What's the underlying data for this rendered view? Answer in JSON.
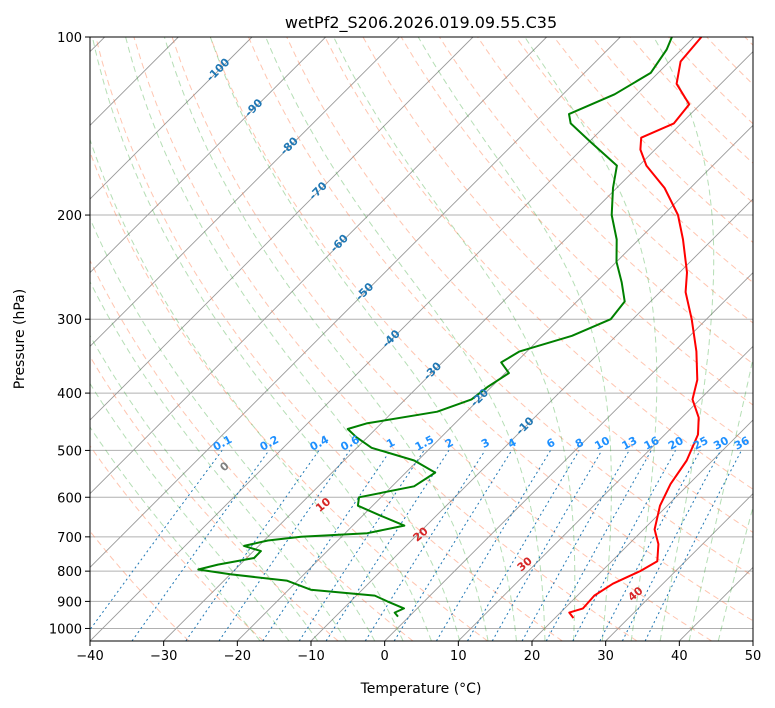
{
  "chart_data": {
    "type": "skew-t",
    "title": "wetPf2_S206.2026.019.09.55.C35",
    "xlabel": "Temperature (°C)",
    "ylabel": "Pressure (hPa)",
    "xlim": [
      -40,
      50
    ],
    "ylim": [
      1050,
      100
    ],
    "x_ticks": [
      -40,
      -30,
      -20,
      -10,
      0,
      10,
      20,
      30,
      40,
      50
    ],
    "y_ticks": [
      100,
      200,
      300,
      400,
      500,
      600,
      700,
      800,
      900,
      1000
    ],
    "x_tick_labels": [
      "−40",
      "−30",
      "−20",
      "−10",
      "0",
      "10",
      "20",
      "30",
      "40",
      "50"
    ],
    "y_tick_labels": [
      "100",
      "200",
      "300",
      "400",
      "500",
      "600",
      "700",
      "800",
      "900",
      "1000"
    ],
    "grid": true,
    "colors": {
      "temperature": "#ff0000",
      "dewpoint": "#008000",
      "isotherm": "#999999",
      "dry_adiabat": "#ff7f50",
      "moist_adiabat": "#2ca02c",
      "mixing_ratio": "#1f77b4",
      "dry_adiabat_label": "#d62728",
      "isotherm_label": "#1f77b4",
      "mixing_ratio_label": "#1e90ff",
      "zero_label": "#808080",
      "lcl_curve": "#d2b48c"
    },
    "series": [
      {
        "name": "temperature",
        "color": "#ff0000",
        "points": [
          {
            "p": 960,
            "t": 22.5
          },
          {
            "p": 940,
            "t": 21.2
          },
          {
            "p": 925,
            "t": 22.5
          },
          {
            "p": 880,
            "t": 22.3
          },
          {
            "p": 840,
            "t": 23.2
          },
          {
            "p": 800,
            "t": 25.2
          },
          {
            "p": 770,
            "t": 26.2
          },
          {
            "p": 720,
            "t": 24.0
          },
          {
            "p": 680,
            "t": 21.5
          },
          {
            "p": 620,
            "t": 19.0
          },
          {
            "p": 570,
            "t": 17.5
          },
          {
            "p": 520,
            "t": 16.5
          },
          {
            "p": 470,
            "t": 14.5
          },
          {
            "p": 440,
            "t": 12.3
          },
          {
            "p": 410,
            "t": 9.0
          },
          {
            "p": 380,
            "t": 7.0
          },
          {
            "p": 340,
            "t": 3.0
          },
          {
            "p": 300,
            "t": -2.0
          },
          {
            "p": 270,
            "t": -6.5
          },
          {
            "p": 250,
            "t": -9.0
          },
          {
            "p": 220,
            "t": -14.0
          },
          {
            "p": 200,
            "t": -18.0
          },
          {
            "p": 180,
            "t": -23.5
          },
          {
            "p": 165,
            "t": -29.0
          },
          {
            "p": 155,
            "t": -32.0
          },
          {
            "p": 148,
            "t": -33.5
          },
          {
            "p": 140,
            "t": -31.0
          },
          {
            "p": 130,
            "t": -31.5
          },
          {
            "p": 120,
            "t": -36.0
          },
          {
            "p": 110,
            "t": -38.5
          },
          {
            "p": 100,
            "t": -39.0
          }
        ]
      },
      {
        "name": "dewpoint",
        "color": "#008000",
        "points": [
          {
            "p": 955,
            "t": -1.5
          },
          {
            "p": 940,
            "t": -2.5
          },
          {
            "p": 925,
            "t": -1.8
          },
          {
            "p": 900,
            "t": -5.0
          },
          {
            "p": 880,
            "t": -7.5
          },
          {
            "p": 860,
            "t": -17.0
          },
          {
            "p": 830,
            "t": -21.5
          },
          {
            "p": 810,
            "t": -30.0
          },
          {
            "p": 795,
            "t": -35.0
          },
          {
            "p": 780,
            "t": -33.0
          },
          {
            "p": 760,
            "t": -29.0
          },
          {
            "p": 740,
            "t": -29.0
          },
          {
            "p": 725,
            "t": -32.0
          },
          {
            "p": 710,
            "t": -29.5
          },
          {
            "p": 700,
            "t": -25.5
          },
          {
            "p": 690,
            "t": -17.0
          },
          {
            "p": 670,
            "t": -13.0
          },
          {
            "p": 645,
            "t": -17.5
          },
          {
            "p": 620,
            "t": -22.0
          },
          {
            "p": 600,
            "t": -23.0
          },
          {
            "p": 575,
            "t": -17.0
          },
          {
            "p": 545,
            "t": -16.0
          },
          {
            "p": 520,
            "t": -20.5
          },
          {
            "p": 495,
            "t": -28.0
          },
          {
            "p": 475,
            "t": -31.5
          },
          {
            "p": 460,
            "t": -33.8
          },
          {
            "p": 450,
            "t": -32.0
          },
          {
            "p": 430,
            "t": -24.0
          },
          {
            "p": 410,
            "t": -21.0
          },
          {
            "p": 390,
            "t": -20.5
          },
          {
            "p": 370,
            "t": -19.5
          },
          {
            "p": 355,
            "t": -22.0
          },
          {
            "p": 340,
            "t": -21.0
          },
          {
            "p": 320,
            "t": -16.0
          },
          {
            "p": 300,
            "t": -13.0
          },
          {
            "p": 280,
            "t": -13.5
          },
          {
            "p": 260,
            "t": -16.5
          },
          {
            "p": 240,
            "t": -20.0
          },
          {
            "p": 220,
            "t": -23.0
          },
          {
            "p": 200,
            "t": -27.0
          },
          {
            "p": 180,
            "t": -30.5
          },
          {
            "p": 165,
            "t": -33.0
          },
          {
            "p": 150,
            "t": -40.0
          },
          {
            "p": 140,
            "t": -45.0
          },
          {
            "p": 135,
            "t": -46.5
          },
          {
            "p": 125,
            "t": -43.0
          },
          {
            "p": 115,
            "t": -41.0
          },
          {
            "p": 105,
            "t": -42.0
          },
          {
            "p": 100,
            "t": -43.0
          }
        ]
      }
    ],
    "isotherm_labels": [
      {
        "text": "-100",
        "value": -100
      },
      {
        "text": "-90",
        "value": -90
      },
      {
        "text": "-80",
        "value": -80
      },
      {
        "text": "-70",
        "value": -70
      },
      {
        "text": "-60",
        "value": -60
      },
      {
        "text": "-50",
        "value": -50
      },
      {
        "text": "-40",
        "value": -40
      },
      {
        "text": "-30",
        "value": -30
      },
      {
        "text": "-20",
        "value": -20
      },
      {
        "text": "-10",
        "value": -10
      }
    ],
    "mixing_ratio_labels": [
      {
        "text": "0.1",
        "value": 0.1
      },
      {
        "text": "0.2",
        "value": 0.2
      },
      {
        "text": "0.4",
        "value": 0.4
      },
      {
        "text": "0.6",
        "value": 0.6
      },
      {
        "text": "1",
        "value": 1
      },
      {
        "text": "1.5",
        "value": 1.5
      },
      {
        "text": "2",
        "value": 2
      },
      {
        "text": "3",
        "value": 3
      },
      {
        "text": "4",
        "value": 4
      },
      {
        "text": "6",
        "value": 6
      },
      {
        "text": "8",
        "value": 8
      },
      {
        "text": "10",
        "value": 10
      },
      {
        "text": "13",
        "value": 13
      },
      {
        "text": "16",
        "value": 16
      },
      {
        "text": "20",
        "value": 20
      },
      {
        "text": "25",
        "value": 25
      },
      {
        "text": "30",
        "value": 30
      },
      {
        "text": "36",
        "value": 36
      }
    ],
    "dry_adiabat_labels": [
      {
        "text": "0",
        "value": 0
      },
      {
        "text": "10",
        "value": 10
      },
      {
        "text": "20",
        "value": 20
      },
      {
        "text": "30",
        "value": 30
      },
      {
        "text": "40",
        "value": 40
      }
    ]
  }
}
